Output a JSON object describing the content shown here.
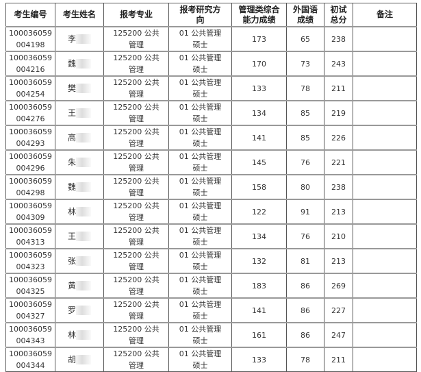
{
  "headers": [
    "考生编号",
    "考生姓名",
    "报考专业",
    "报考研究方向",
    "管理类综合能力成绩",
    "外国语成绩",
    "初试总分",
    "备注"
  ],
  "rows": [
    {
      "id1": "100036059",
      "id2": "004198",
      "name": "李",
      "major1": "125200 公共",
      "major2": "管理",
      "dir1": "01 公共管理",
      "dir2": "硕士",
      "s1": "173",
      "s2": "65",
      "total": "238",
      "note": ""
    },
    {
      "id1": "100036059",
      "id2": "004216",
      "name": "魏",
      "major1": "125200 公共",
      "major2": "管理",
      "dir1": "01 公共管理",
      "dir2": "硕士",
      "s1": "170",
      "s2": "73",
      "total": "243",
      "note": ""
    },
    {
      "id1": "100036059",
      "id2": "004254",
      "name": "樊",
      "major1": "125200 公共",
      "major2": "管理",
      "dir1": "01 公共管理",
      "dir2": "硕士",
      "s1": "133",
      "s2": "78",
      "total": "211",
      "note": ""
    },
    {
      "id1": "100036059",
      "id2": "004276",
      "name": "王",
      "major1": "125200 公共",
      "major2": "管理",
      "dir1": "01 公共管理",
      "dir2": "硕士",
      "s1": "134",
      "s2": "85",
      "total": "219",
      "note": ""
    },
    {
      "id1": "100036059",
      "id2": "004293",
      "name": "高",
      "major1": "125200 公共",
      "major2": "管理",
      "dir1": "01 公共管理",
      "dir2": "硕士",
      "s1": "141",
      "s2": "85",
      "total": "226",
      "note": ""
    },
    {
      "id1": "100036059",
      "id2": "004296",
      "name": "朱",
      "major1": "125200 公共",
      "major2": "管理",
      "dir1": "01 公共管理",
      "dir2": "硕士",
      "s1": "145",
      "s2": "76",
      "total": "221",
      "note": ""
    },
    {
      "id1": "100036059",
      "id2": "004298",
      "name": "魏",
      "major1": "125200 公共",
      "major2": "管理",
      "dir1": "01 公共管理",
      "dir2": "硕士",
      "s1": "158",
      "s2": "80",
      "total": "238",
      "note": ""
    },
    {
      "id1": "100036059",
      "id2": "004309",
      "name": "林",
      "major1": "125200 公共",
      "major2": "管理",
      "dir1": "01 公共管理",
      "dir2": "硕士",
      "s1": "122",
      "s2": "91",
      "total": "213",
      "note": ""
    },
    {
      "id1": "100036059",
      "id2": "004313",
      "name": "王",
      "major1": "125200 公共",
      "major2": "管理",
      "dir1": "01 公共管理",
      "dir2": "硕士",
      "s1": "134",
      "s2": "76",
      "total": "210",
      "note": ""
    },
    {
      "id1": "100036059",
      "id2": "004323",
      "name": "张",
      "major1": "125200 公共",
      "major2": "管理",
      "dir1": "01 公共管理",
      "dir2": "硕士",
      "s1": "132",
      "s2": "81",
      "total": "213",
      "note": ""
    },
    {
      "id1": "100036059",
      "id2": "004325",
      "name": "黄",
      "major1": "125200 公共",
      "major2": "管理",
      "dir1": "01 公共管理",
      "dir2": "硕士",
      "s1": "183",
      "s2": "86",
      "total": "269",
      "note": ""
    },
    {
      "id1": "100036059",
      "id2": "004327",
      "name": "罗",
      "major1": "125200 公共",
      "major2": "管理",
      "dir1": "01 公共管理",
      "dir2": "硕士",
      "s1": "141",
      "s2": "86",
      "total": "227",
      "note": ""
    },
    {
      "id1": "100036059",
      "id2": "004343",
      "name": "林",
      "major1": "125200 公共",
      "major2": "管理",
      "dir1": "01 公共管理",
      "dir2": "硕士",
      "s1": "161",
      "s2": "86",
      "total": "247",
      "note": ""
    },
    {
      "id1": "100036059",
      "id2": "004344",
      "name": "胡",
      "major1": "125200 公共",
      "major2": "管理",
      "dir1": "01 公共管理",
      "dir2": "硕士",
      "s1": "133",
      "s2": "78",
      "total": "211",
      "note": ""
    }
  ]
}
